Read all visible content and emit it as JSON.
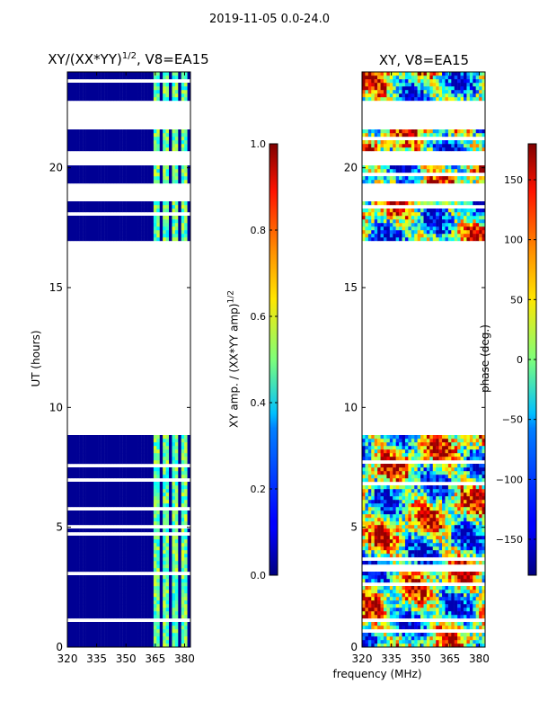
{
  "suptitle": "2019-11-05 0.0-24.0",
  "xlabel": "frequency (MHz)",
  "chart_data": [
    {
      "type": "heatmap",
      "title": "XY/(XX*YY)",
      "title_sup": "1/2",
      "title_suffix": ", V8=EA15",
      "xlabel": "",
      "ylabel": "UT (hours)",
      "xlim": [
        320,
        383
      ],
      "ylim": [
        0,
        24
      ],
      "xticks": [
        320,
        335,
        350,
        365,
        380
      ],
      "yticks": [
        0,
        5,
        10,
        15,
        20
      ],
      "colorbar": {
        "label": "XY amp. / (XX*YY amp)",
        "label_sup": "1/2",
        "range": [
          0.0,
          1.0
        ],
        "ticks": [
          "0.0",
          "0.2",
          "0.4",
          "0.6",
          "0.8",
          "1.0"
        ]
      },
      "data_rows_ut_hours": [
        [
          0.0,
          8.9
        ],
        [
          17.0,
          18.6
        ],
        [
          19.4,
          20.1
        ],
        [
          20.7,
          21.6
        ],
        [
          22.8,
          24.0
        ]
      ],
      "background_value": 0.0,
      "bright_channels_mhz": [
        [
          364,
          367
        ],
        [
          369,
          372
        ],
        [
          374,
          377
        ],
        [
          378,
          381
        ]
      ]
    },
    {
      "type": "heatmap",
      "title": "XY, V8=EA15",
      "xlabel": "frequency (MHz)",
      "ylabel": "",
      "xlim": [
        320,
        383
      ],
      "ylim": [
        0,
        24
      ],
      "xticks": [
        320,
        335,
        350,
        365,
        380
      ],
      "yticks": [
        0,
        5,
        10,
        15,
        20
      ],
      "colorbar": {
        "label": "phase (deg.)",
        "range": [
          -180,
          180
        ],
        "ticks": [
          "−150",
          "−100",
          "−50",
          "0",
          "50",
          "100",
          "150"
        ]
      },
      "data_rows_ut_hours": [
        [
          0.0,
          8.9
        ],
        [
          17.0,
          18.6
        ],
        [
          19.4,
          20.1
        ],
        [
          20.7,
          21.6
        ],
        [
          22.8,
          24.0
        ]
      ],
      "phase_pattern": "mixed red/blue/cyan phase wraps"
    }
  ]
}
